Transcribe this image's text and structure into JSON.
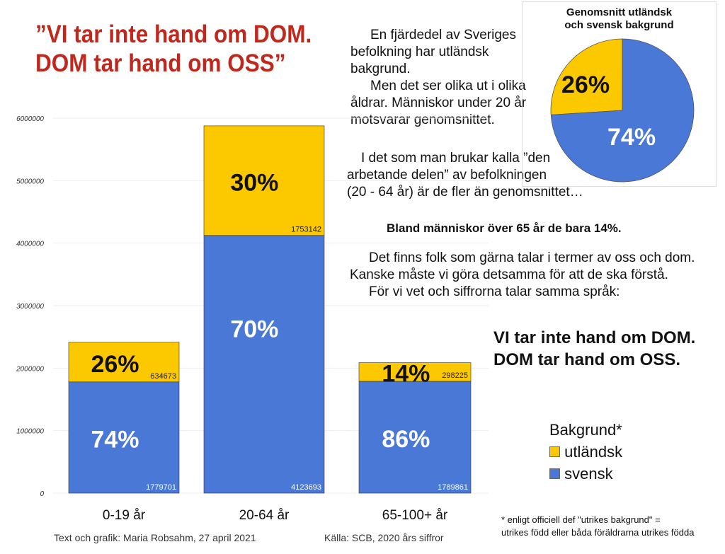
{
  "title": {
    "line1": "”VI tar inte hand om DOM.",
    "line2": "DOM tar hand om OSS”"
  },
  "text": {
    "p1a": "En fjärdedel av Sveriges",
    "p1b": "befolkning har utländsk",
    "p1c": "bakgrund.",
    "p2a": "Men det ser olika ut i olika",
    "p2b": "åldrar. Människor under 20 år",
    "p2c": "motsvarar genomsnittet.",
    "p3a": "I det som man brukar kalla ”den",
    "p3b": "arbetande delen” av befolkningen",
    "p3c": "(20 - 64 år) är de fler än genomsnittet…",
    "p4": "Bland människor över 65 år de bara 14%.",
    "p5a": "Det finns folk som gärna talar i termer av oss och dom.",
    "p5b": "Kanske måste vi göra detsamma för att de ska förstå.",
    "p5c": "För vi vet och siffrorna talar samma språk:",
    "slogan1": "VI tar inte hand om DOM.",
    "slogan2": "DOM tar hand om OSS."
  },
  "footer": {
    "credit": "Text och grafik: Maria Robsahm, 27 april 2021",
    "source": "Källa: SCB, 2020 års siffror",
    "note1": "* enligt officiell def \"utrikes bakgrund\" =",
    "note2": "utrikes född eller båda föräldrarna utrikes födda"
  },
  "colors": {
    "svensk": "#4a78d6",
    "utlandsk": "#fcc800"
  },
  "chart_data": [
    {
      "type": "bar",
      "stacked": true,
      "categories": [
        "0-19 år",
        "20-64 år",
        "65-100+ år"
      ],
      "series": [
        {
          "name": "svensk",
          "values": [
            1779701,
            4123693,
            1789861
          ],
          "pct_labels": [
            "74%",
            "70%",
            "86%"
          ]
        },
        {
          "name": "utländsk",
          "values": [
            634673,
            1753142,
            298225
          ],
          "pct_labels": [
            "26%",
            "30%",
            "14%"
          ]
        }
      ],
      "yticks": [
        "0",
        "1000000",
        "2000000",
        "3000000",
        "4000000",
        "5000000",
        "6000000"
      ],
      "ylim": [
        0,
        6000000
      ],
      "grid": true,
      "legend": {
        "title": "Bakgrund*",
        "entries": [
          "utländsk",
          "svensk"
        ],
        "placement": "right"
      }
    },
    {
      "type": "pie",
      "title_line1": "Genomsnitt utländsk",
      "title_line2": "och svensk bakgrund",
      "slices": [
        {
          "name": "utländsk",
          "value": 26,
          "label": "26%"
        },
        {
          "name": "svensk",
          "value": 74,
          "label": "74%"
        }
      ]
    }
  ]
}
